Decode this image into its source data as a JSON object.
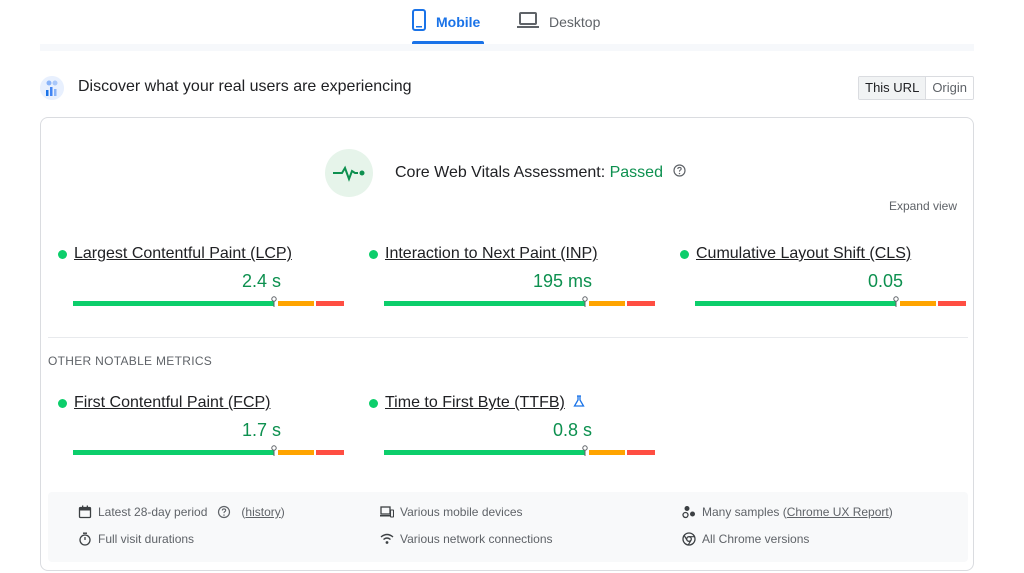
{
  "tabs": [
    {
      "label": "Mobile",
      "icon": "smartphone-icon",
      "active": true
    },
    {
      "label": "Desktop",
      "icon": "laptop-icon",
      "active": false
    }
  ],
  "discover": {
    "title": "Discover what your real users are experiencing",
    "toggle": {
      "this_url": "This URL",
      "origin": "Origin",
      "selected": "This URL"
    }
  },
  "assessment": {
    "label": "Core Web Vitals Assessment: ",
    "result": "Passed",
    "expand_view": "Expand view"
  },
  "core_metrics": [
    {
      "name": "Largest Contentful Paint (LCP)",
      "value": "2.4 s",
      "status": "good",
      "marker_fraction": 0.74
    },
    {
      "name": "Interaction to Next Paint (INP)",
      "value": "195 ms",
      "status": "good",
      "marker_fraction": 0.74
    },
    {
      "name": "Cumulative Layout Shift (CLS)",
      "value": "0.05",
      "status": "good",
      "marker_fraction": 0.74
    }
  ],
  "other_title": "OTHER NOTABLE METRICS",
  "other_metrics": [
    {
      "name": "First Contentful Paint (FCP)",
      "value": "1.7 s",
      "status": "good",
      "marker_fraction": 0.74
    },
    {
      "name": "Time to First Byte (TTFB)",
      "value": "0.8 s",
      "status": "good",
      "experimental": true,
      "marker_fraction": 0.74
    }
  ],
  "footer": {
    "period": "Latest 28-day period",
    "history": "history",
    "devices": "Various mobile devices",
    "samples_prefix": "Many samples (",
    "samples_link": "Chrome UX Report",
    "samples_suffix": ")",
    "durations": "Full visit durations",
    "network": "Various network connections",
    "chrome": "All Chrome versions"
  },
  "colors": {
    "accent": "#1a73e8",
    "good": "#0cce6b",
    "good_text": "#0d904f",
    "needs_improvement": "#ffa400",
    "poor": "#ff4e42"
  }
}
